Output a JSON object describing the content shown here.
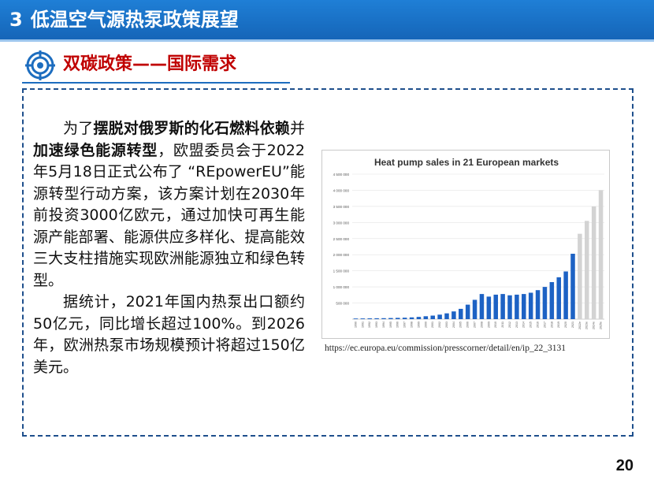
{
  "header": {
    "number": "3",
    "title": "低温空气源热泵政策展望"
  },
  "section": {
    "title": "双碳政策——国际需求",
    "icon": "target-icon"
  },
  "body": {
    "p1_pre": "为了",
    "p1_bold1": "摆脱对俄罗斯的化石燃料依赖",
    "p1_mid": "并",
    "p1_bold2": "加速绿色能源转型",
    "p1_post": "，欧盟委员会于2022年5月18日正式公布了 “REpowerEU”能源转型行动方案，该方案计划在2030年前投资3000亿欧元，通过加快可再生能源产能部署、能源供应多样化、提高能效三大支柱措施实现欧洲能源独立和绿色转型。",
    "p2": "据统计，2021年国内热泵出口额约50亿元，同比增长超过100%。到2026年，欧洲热泵市场规模预计将超过150亿美元。"
  },
  "chart_data": {
    "type": "bar",
    "title": "Heat pump sales in 21 European markets",
    "xlabel": "",
    "ylabel": "",
    "ylim": [
      0,
      4500000
    ],
    "yticks": [
      "500 000",
      "1 000 000",
      "1 500 000",
      "2 000 000",
      "2 500 000",
      "3 000 000",
      "3 500 000",
      "4 000 000",
      "4 500 000"
    ],
    "categories": [
      "1990",
      "1991",
      "1992",
      "1993",
      "1994",
      "1995",
      "1996",
      "1997",
      "1998",
      "1999",
      "2000",
      "2001",
      "2002",
      "2003",
      "2004",
      "2005",
      "2006",
      "2007",
      "2008",
      "2009",
      "2010",
      "2011",
      "2012",
      "2013",
      "2014",
      "2015",
      "2016",
      "2017",
      "2018",
      "2019",
      "2020",
      "2021",
      "2022e",
      "2023e",
      "2024e",
      "2025e"
    ],
    "values": [
      20000,
      22000,
      25000,
      28000,
      30000,
      35000,
      40000,
      45000,
      55000,
      70000,
      90000,
      110000,
      140000,
      180000,
      240000,
      320000,
      450000,
      600000,
      780000,
      700000,
      760000,
      780000,
      740000,
      760000,
      780000,
      820000,
      900000,
      1000000,
      1150000,
      1300000,
      1480000,
      2030000,
      2650000,
      3050000,
      3500000,
      4000000
    ],
    "projected_from": "2022e",
    "colors": {
      "actual": "#1d62c4",
      "projected": "#d3d3d3",
      "axis_text": "#555555",
      "grid": "#e3e3e3"
    }
  },
  "source": {
    "url": "https://ec.europa.eu/commission/presscorner/detail/en/ip_22_3131"
  },
  "page": {
    "number": "20"
  }
}
